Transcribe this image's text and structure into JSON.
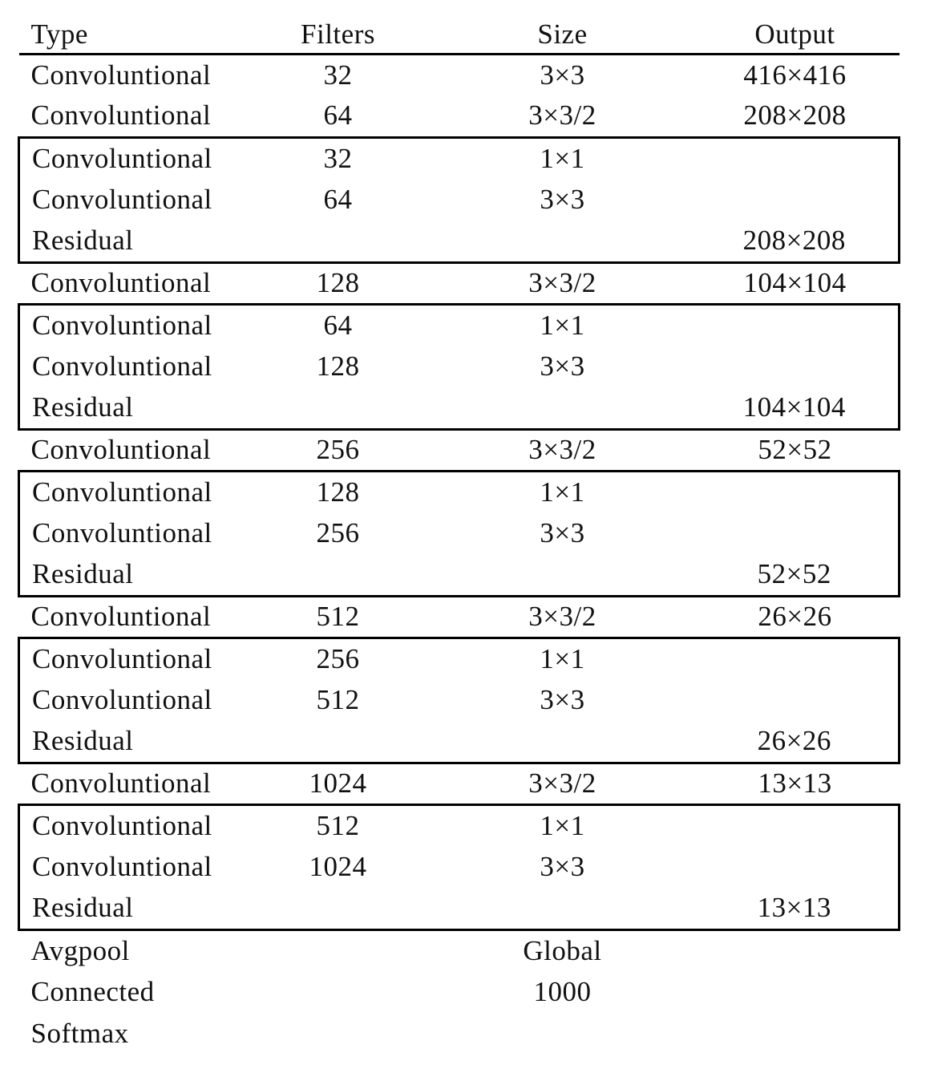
{
  "page": {
    "background": "#ffffff",
    "text_color": "#111111",
    "border_color": "#000000"
  },
  "table": {
    "columns": [
      {
        "key": "type",
        "label": "Type"
      },
      {
        "key": "filters",
        "label": "Filters"
      },
      {
        "key": "size",
        "label": "Size"
      },
      {
        "key": "output",
        "label": "Output"
      }
    ],
    "sections": [
      {
        "boxed": false,
        "rows": [
          [
            "Convoluntional",
            "32",
            "3×3",
            "416×416"
          ],
          [
            "Convoluntional",
            "64",
            "3×3/2",
            "208×208"
          ]
        ]
      },
      {
        "boxed": true,
        "rows": [
          [
            "Convoluntional",
            "32",
            "1×1",
            ""
          ],
          [
            "Convoluntional",
            "64",
            "3×3",
            ""
          ],
          [
            "Residual",
            "",
            "",
            "208×208"
          ]
        ]
      },
      {
        "boxed": false,
        "rows": [
          [
            "Convoluntional",
            "128",
            "3×3/2",
            "104×104"
          ]
        ]
      },
      {
        "boxed": true,
        "rows": [
          [
            "Convoluntional",
            "64",
            "1×1",
            ""
          ],
          [
            "Convoluntional",
            "128",
            "3×3",
            ""
          ],
          [
            "Residual",
            "",
            "",
            "104×104"
          ]
        ]
      },
      {
        "boxed": false,
        "rows": [
          [
            "Convoluntional",
            "256",
            "3×3/2",
            "52×52"
          ]
        ]
      },
      {
        "boxed": true,
        "rows": [
          [
            "Convoluntional",
            "128",
            "1×1",
            ""
          ],
          [
            "Convoluntional",
            "256",
            "3×3",
            ""
          ],
          [
            "Residual",
            "",
            "",
            "52×52"
          ]
        ]
      },
      {
        "boxed": false,
        "rows": [
          [
            "Convoluntional",
            "512",
            "3×3/2",
            "26×26"
          ]
        ]
      },
      {
        "boxed": true,
        "rows": [
          [
            "Convoluntional",
            "256",
            "1×1",
            ""
          ],
          [
            "Convoluntional",
            "512",
            "3×3",
            ""
          ],
          [
            "Residual",
            "",
            "",
            "26×26"
          ]
        ]
      },
      {
        "boxed": false,
        "rows": [
          [
            "Convoluntional",
            "1024",
            "3×3/2",
            "13×13"
          ]
        ]
      },
      {
        "boxed": true,
        "rows": [
          [
            "Convoluntional",
            "512",
            "1×1",
            ""
          ],
          [
            "Convoluntional",
            "1024",
            "3×3",
            ""
          ],
          [
            "Residual",
            "",
            "",
            "13×13"
          ]
        ]
      },
      {
        "boxed": false,
        "rows": [
          [
            "Avgpool",
            "",
            "Global",
            ""
          ],
          [
            "Connected",
            "",
            "1000",
            ""
          ],
          [
            "Softmax",
            "",
            "",
            ""
          ]
        ]
      }
    ]
  }
}
